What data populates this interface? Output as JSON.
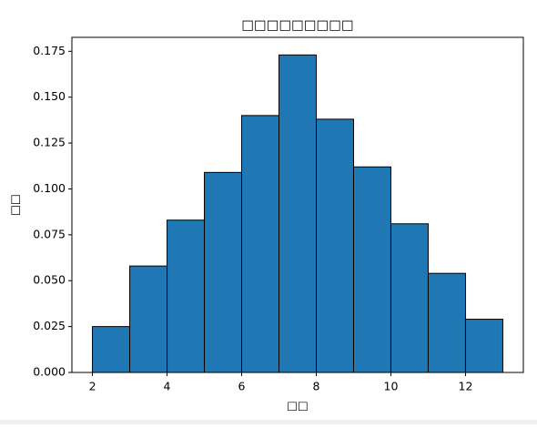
{
  "chart_data": {
    "type": "histogram",
    "title": "□□□□□□□□□",
    "xlabel": "□□",
    "ylabel": "□□",
    "bins": [
      2,
      3,
      4,
      5,
      6,
      7,
      8,
      9,
      10,
      11,
      12,
      13
    ],
    "values": [
      0.025,
      0.058,
      0.083,
      0.109,
      0.14,
      0.173,
      0.138,
      0.112,
      0.081,
      0.054,
      0.029
    ],
    "color": "#1f77b4",
    "edgecolor": "#000000",
    "xlim": [
      1.45,
      13.55
    ],
    "ylim": [
      0,
      0.1826
    ],
    "xticks": [
      2,
      4,
      6,
      8,
      10,
      12
    ],
    "yticks": [
      {
        "value": 0,
        "label": "0.000"
      },
      {
        "value": 0.025,
        "label": "0.025"
      },
      {
        "value": 0.05,
        "label": "0.050"
      },
      {
        "value": 0.075,
        "label": "0.075"
      },
      {
        "value": 0.1,
        "label": "0.100"
      },
      {
        "value": 0.125,
        "label": "0.125"
      },
      {
        "value": 0.15,
        "label": "0.150"
      },
      {
        "value": 0.175,
        "label": "0.175"
      }
    ]
  }
}
